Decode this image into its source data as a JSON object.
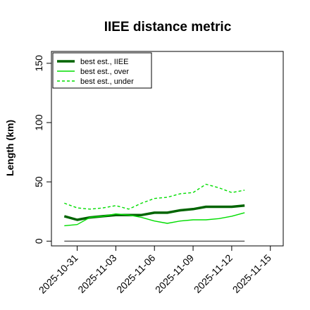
{
  "chart_data": {
    "type": "line",
    "title": "IIEE distance metric",
    "xlabel": "",
    "ylabel": "Length (km)",
    "ylim": [
      -4,
      160
    ],
    "xlim": [
      "2025-10-29",
      "2025-11-16"
    ],
    "yticks": [
      0,
      50,
      100,
      150
    ],
    "xticks": [
      "2025-10-31",
      "2025-11-03",
      "2025-11-06",
      "2025-11-09",
      "2025-11-12",
      "2025-11-15"
    ],
    "grid": false,
    "legend_position": "top-left",
    "x": [
      "2025-10-30",
      "2025-10-31",
      "2025-11-01",
      "2025-11-02",
      "2025-11-03",
      "2025-11-04",
      "2025-11-05",
      "2025-11-06",
      "2025-11-07",
      "2025-11-08",
      "2025-11-09",
      "2025-11-10",
      "2025-11-11",
      "2025-11-12",
      "2025-11-13"
    ],
    "series": [
      {
        "name": "best est., IIEE",
        "color": "#006400",
        "style": "solid",
        "width": "thick",
        "values": [
          21,
          18,
          20,
          21,
          22,
          22,
          22,
          24,
          24,
          26,
          27,
          29,
          29,
          29,
          30
        ]
      },
      {
        "name": "best est., over",
        "color": "#00dd00",
        "style": "solid",
        "width": "thin",
        "values": [
          13,
          14,
          20,
          21,
          23,
          22,
          20,
          17,
          15,
          17,
          18,
          18,
          19,
          21,
          24
        ]
      },
      {
        "name": "best est., under",
        "color": "#00dd00",
        "style": "dashed",
        "width": "thin",
        "values": [
          32,
          28,
          27,
          28,
          30,
          27,
          32,
          36,
          37,
          40,
          41,
          48,
          45,
          41,
          43
        ]
      },
      {
        "color": "#555555",
        "style": "solid",
        "width": "thin",
        "values": [
          0,
          0,
          0,
          0,
          0,
          0,
          0,
          0,
          0,
          0,
          0,
          0,
          0,
          0,
          0
        ]
      }
    ]
  }
}
